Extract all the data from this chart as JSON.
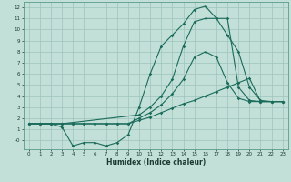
{
  "xlabel": "Humidex (Indice chaleur)",
  "background_color": "#c2e0d8",
  "grid_color": "#9dc4bb",
  "line_color": "#1a6b5a",
  "xlim": [
    -0.5,
    23.5
  ],
  "ylim": [
    -0.8,
    12.5
  ],
  "line1_x": [
    0,
    1,
    2,
    3,
    4,
    5,
    6,
    7,
    8,
    9,
    10,
    11,
    12,
    13,
    14,
    15,
    16,
    17,
    18,
    19,
    20,
    21,
    22,
    23
  ],
  "line1_y": [
    1.5,
    1.5,
    1.5,
    1.5,
    1.5,
    1.5,
    1.5,
    1.5,
    1.5,
    1.5,
    1.8,
    2.1,
    2.5,
    2.9,
    3.3,
    3.6,
    4.0,
    4.4,
    4.8,
    5.2,
    5.6,
    3.5,
    3.5,
    3.5
  ],
  "line2_x": [
    0,
    1,
    2,
    3,
    4,
    5,
    6,
    7,
    8,
    9,
    10,
    11,
    12,
    13,
    14,
    15,
    16,
    17,
    18,
    19,
    20,
    21,
    22,
    23
  ],
  "line2_y": [
    1.5,
    1.5,
    1.5,
    1.5,
    1.5,
    1.5,
    1.5,
    1.5,
    1.5,
    1.5,
    2.0,
    2.5,
    3.2,
    4.2,
    5.5,
    7.5,
    8.0,
    7.5,
    5.2,
    3.8,
    3.5,
    3.5,
    3.5,
    3.5
  ],
  "line3_x": [
    0,
    1,
    2,
    3,
    4,
    5,
    6,
    7,
    8,
    9,
    10,
    11,
    12,
    13,
    14,
    15,
    16,
    17,
    18,
    19,
    20,
    21,
    22,
    23
  ],
  "line3_y": [
    1.5,
    1.5,
    1.5,
    1.2,
    -0.5,
    -0.2,
    -0.2,
    -0.5,
    -0.2,
    0.5,
    3.0,
    6.0,
    8.5,
    9.5,
    10.5,
    11.8,
    12.1,
    11.0,
    11.0,
    4.8,
    3.6,
    3.5,
    3.5,
    3.5
  ],
  "line4_x": [
    0,
    1,
    2,
    3,
    10,
    11,
    12,
    13,
    14,
    15,
    16,
    17,
    18,
    19,
    20,
    21,
    22,
    23
  ],
  "line4_y": [
    1.5,
    1.5,
    1.5,
    1.5,
    2.3,
    3.0,
    4.0,
    5.5,
    8.5,
    10.7,
    11.0,
    11.0,
    9.5,
    8.0,
    4.8,
    3.6,
    3.5,
    3.5
  ]
}
